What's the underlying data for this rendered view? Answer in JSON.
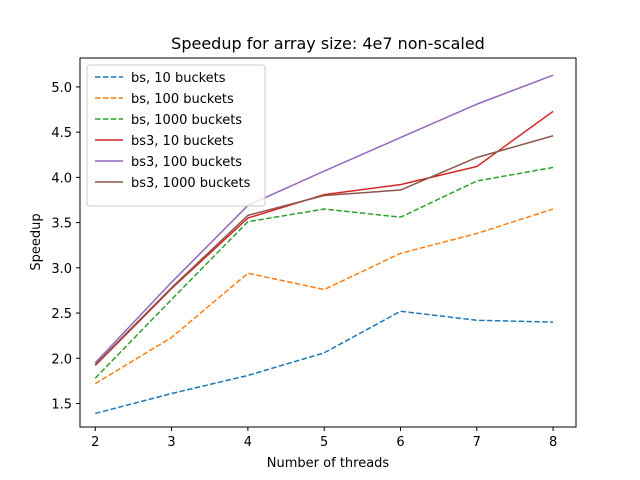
{
  "chart_data": {
    "type": "line",
    "title": "Speedup for array size: 4e7 non-scaled",
    "xlabel": "Number of threads",
    "ylabel": "Speedup",
    "x": [
      2,
      3,
      4,
      5,
      6,
      7,
      8
    ],
    "xlim": [
      1.8,
      8.3
    ],
    "ylim": [
      1.24,
      5.32
    ],
    "xticks": [
      2,
      3,
      4,
      5,
      6,
      7,
      8
    ],
    "yticks": [
      1.5,
      2.0,
      2.5,
      3.0,
      3.5,
      4.0,
      4.5,
      5.0
    ],
    "grid": false,
    "legend_position": "top-left",
    "series": [
      {
        "name": "bs, 10 buckets",
        "color": "#1f77b4",
        "style": "dashed",
        "values": [
          1.39,
          1.61,
          1.81,
          2.06,
          2.52,
          2.42,
          2.4
        ]
      },
      {
        "name": "bs, 100 buckets",
        "color": "#ff7f0e",
        "style": "dashed",
        "values": [
          1.72,
          2.23,
          2.94,
          2.76,
          3.16,
          3.38,
          3.65
        ]
      },
      {
        "name": "bs, 1000 buckets",
        "color": "#2ca02c",
        "style": "dashed",
        "values": [
          1.78,
          2.65,
          3.51,
          3.65,
          3.56,
          3.96,
          4.11
        ]
      },
      {
        "name": "bs3, 10 buckets",
        "color": "#d62728",
        "style": "solid",
        "values": [
          1.92,
          2.77,
          3.55,
          3.81,
          3.92,
          4.12,
          4.73
        ]
      },
      {
        "name": "bs3, 100 buckets",
        "color": "#9467bd",
        "style": "solid",
        "values": [
          1.95,
          2.84,
          3.69,
          4.07,
          4.44,
          4.81,
          5.13
        ]
      },
      {
        "name": "bs3, 1000 buckets",
        "color": "#8c564b",
        "style": "solid",
        "values": [
          1.93,
          2.78,
          3.58,
          3.8,
          3.86,
          4.22,
          4.46
        ]
      }
    ]
  }
}
